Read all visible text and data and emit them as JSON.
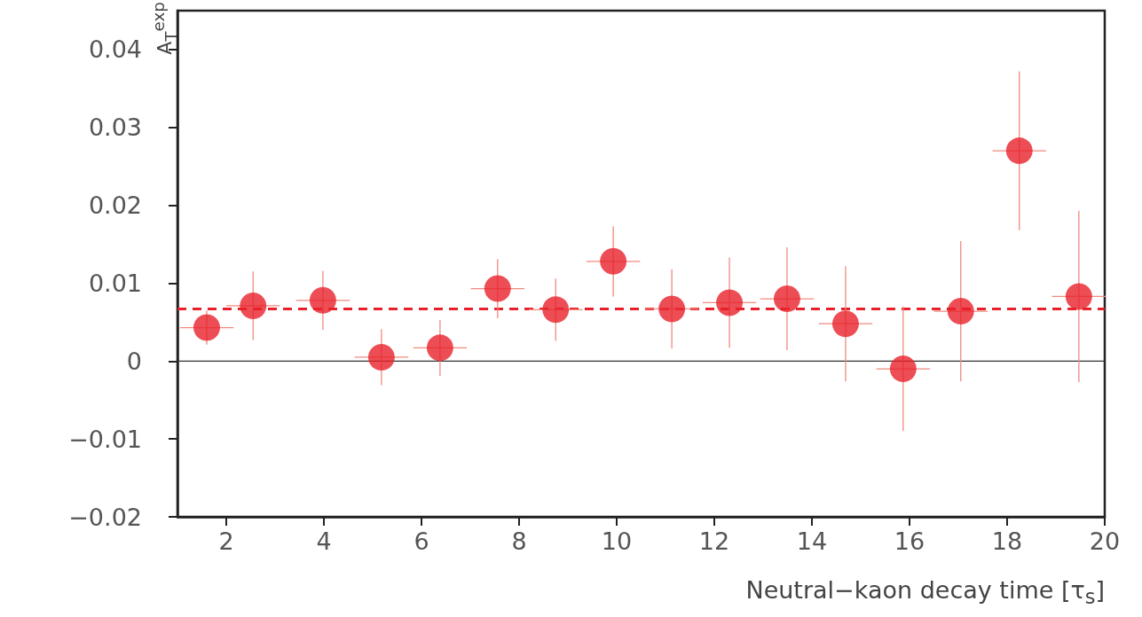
{
  "chart_data": {
    "type": "scatter",
    "xlabel": "Neutral−kaon decay time  [τ$_{s}$]",
    "ylabel": "A$_{T}$$^{exp}$",
    "x": [
      1.6,
      2.55,
      3.98,
      5.18,
      6.38,
      7.56,
      8.75,
      9.93,
      11.13,
      12.31,
      13.49,
      14.69,
      15.87,
      17.05,
      18.25,
      19.47
    ],
    "series": [
      {
        "color": "#e8202a",
        "values": [
          0.0043,
          0.0071,
          0.0078,
          0.0005,
          0.0017,
          0.0093,
          0.0066,
          0.0128,
          0.0067,
          0.0075,
          0.008,
          0.0048,
          -0.001,
          0.0064,
          0.027,
          0.0083
        ],
        "errors": [
          0.0022,
          0.0044,
          0.0038,
          0.0036,
          0.0036,
          0.0038,
          0.004,
          0.0045,
          0.0051,
          0.0058,
          0.0066,
          0.0074,
          0.008,
          0.009,
          0.0102,
          0.011
        ],
        "xerrors": [
          0.55,
          0.55,
          0.55,
          0.55,
          0.55,
          0.55,
          0.55,
          0.55,
          0.55,
          0.55,
          0.55,
          0.55,
          0.55,
          0.55,
          0.55,
          0.55
        ]
      }
    ],
    "xlim": [
      1,
      20
    ],
    "xticks": [
      2,
      4,
      6,
      8,
      10,
      12,
      14,
      16,
      18,
      20
    ],
    "ylim": [
      -0.02,
      0.045
    ],
    "yticks": [
      {
        "value": -0.02,
        "label": "−0.02"
      },
      {
        "value": -0.01,
        "label": "−0.01"
      },
      0,
      0.01,
      0.02,
      0.03,
      0.04
    ],
    "ref_lines": [
      {
        "axis": "y",
        "value": 0,
        "color": "#333333",
        "line_style": "solid"
      },
      {
        "axis": "y",
        "value": 0.0067,
        "color": "#e8202a",
        "line_style": "dashed"
      }
    ],
    "marker": "circle",
    "grid": false
  }
}
